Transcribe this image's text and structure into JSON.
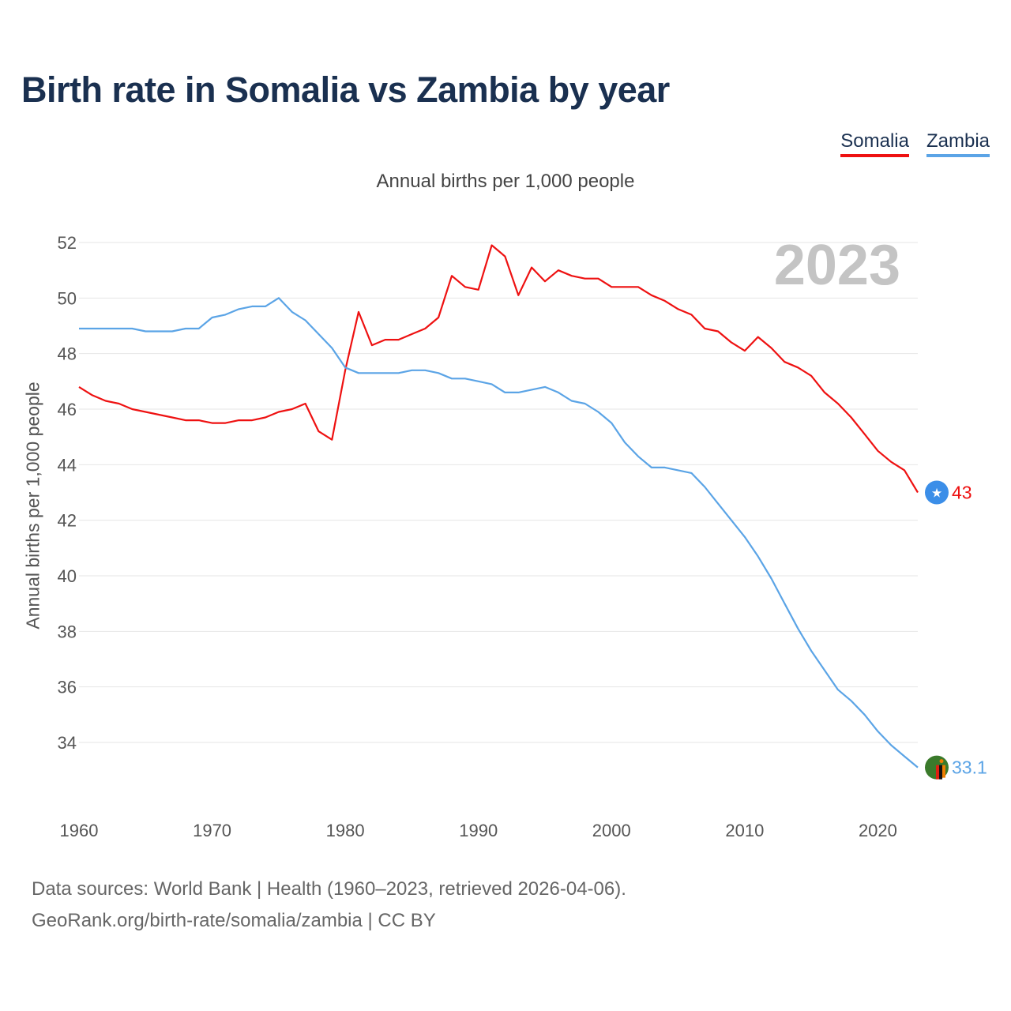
{
  "title": "Birth rate in Somalia vs Zambia by year",
  "subtitle": "Annual births per 1,000 people",
  "legend": [
    {
      "name": "Somalia",
      "color": "#ee1111"
    },
    {
      "name": "Zambia",
      "color": "#5ba4e6"
    }
  ],
  "year_badge": "2023",
  "footer": {
    "line1": "Data sources: World Bank | Health (1960–2023, retrieved 2026-04-06).",
    "line2": "GeoRank.org/birth-rate/somalia/zambia | CC BY"
  },
  "chart_data": {
    "type": "line",
    "title": "Birth rate in Somalia vs Zambia by year",
    "ylabel": "Annual births per 1,000 people",
    "xlabel": "",
    "xlim": [
      1960,
      2023
    ],
    "ylim": [
      32,
      53
    ],
    "x_ticks": [
      1960,
      1970,
      1980,
      1990,
      2000,
      2010,
      2020
    ],
    "y_ticks": [
      34,
      36,
      38,
      40,
      42,
      44,
      46,
      48,
      50,
      52
    ],
    "grid": true,
    "legend_position": "top-right",
    "series": [
      {
        "name": "Somalia",
        "color": "#ee1111",
        "end_label": "43",
        "marker_icon": "somalia-flag-icon",
        "x": [
          1960,
          1961,
          1962,
          1963,
          1964,
          1965,
          1966,
          1967,
          1968,
          1969,
          1970,
          1971,
          1972,
          1973,
          1974,
          1975,
          1976,
          1977,
          1978,
          1979,
          1980,
          1981,
          1982,
          1983,
          1984,
          1985,
          1986,
          1987,
          1988,
          1989,
          1990,
          1991,
          1992,
          1993,
          1994,
          1995,
          1996,
          1997,
          1998,
          1999,
          2000,
          2001,
          2002,
          2003,
          2004,
          2005,
          2006,
          2007,
          2008,
          2009,
          2010,
          2011,
          2012,
          2013,
          2014,
          2015,
          2016,
          2017,
          2018,
          2019,
          2020,
          2021,
          2022,
          2023
        ],
        "values": [
          46.8,
          46.5,
          46.3,
          46.2,
          46.0,
          45.9,
          45.8,
          45.7,
          45.6,
          45.6,
          45.5,
          45.5,
          45.6,
          45.6,
          45.7,
          45.9,
          46.0,
          46.2,
          45.2,
          44.9,
          47.4,
          49.5,
          48.3,
          48.5,
          48.5,
          48.7,
          48.9,
          49.3,
          50.8,
          50.4,
          50.3,
          51.9,
          51.5,
          50.1,
          51.1,
          50.6,
          51.0,
          50.8,
          50.7,
          50.7,
          50.4,
          50.4,
          50.4,
          50.1,
          49.9,
          49.6,
          49.4,
          48.9,
          48.8,
          48.4,
          48.1,
          48.6,
          48.2,
          47.7,
          47.5,
          47.2,
          46.6,
          46.2,
          45.7,
          45.1,
          44.5,
          44.1,
          43.8,
          43.0
        ]
      },
      {
        "name": "Zambia",
        "color": "#5ba4e6",
        "end_label": "33.1",
        "marker_icon": "zambia-flag-icon",
        "x": [
          1960,
          1961,
          1962,
          1963,
          1964,
          1965,
          1966,
          1967,
          1968,
          1969,
          1970,
          1971,
          1972,
          1973,
          1974,
          1975,
          1976,
          1977,
          1978,
          1979,
          1980,
          1981,
          1982,
          1983,
          1984,
          1985,
          1986,
          1987,
          1988,
          1989,
          1990,
          1991,
          1992,
          1993,
          1994,
          1995,
          1996,
          1997,
          1998,
          1999,
          2000,
          2001,
          2002,
          2003,
          2004,
          2005,
          2006,
          2007,
          2008,
          2009,
          2010,
          2011,
          2012,
          2013,
          2014,
          2015,
          2016,
          2017,
          2018,
          2019,
          2020,
          2021,
          2022,
          2023
        ],
        "values": [
          48.9,
          48.9,
          48.9,
          48.9,
          48.9,
          48.8,
          48.8,
          48.8,
          48.9,
          48.9,
          49.3,
          49.4,
          49.6,
          49.7,
          49.7,
          50.0,
          49.5,
          49.2,
          48.7,
          48.2,
          47.5,
          47.3,
          47.3,
          47.3,
          47.3,
          47.4,
          47.4,
          47.3,
          47.1,
          47.1,
          47.0,
          46.9,
          46.6,
          46.6,
          46.7,
          46.8,
          46.6,
          46.3,
          46.2,
          45.9,
          45.5,
          44.8,
          44.3,
          43.9,
          43.9,
          43.8,
          43.7,
          43.2,
          42.6,
          42.0,
          41.4,
          40.7,
          39.9,
          39.0,
          38.1,
          37.3,
          36.6,
          35.9,
          35.5,
          35.0,
          34.4,
          33.9,
          33.5,
          33.1
        ]
      }
    ]
  }
}
